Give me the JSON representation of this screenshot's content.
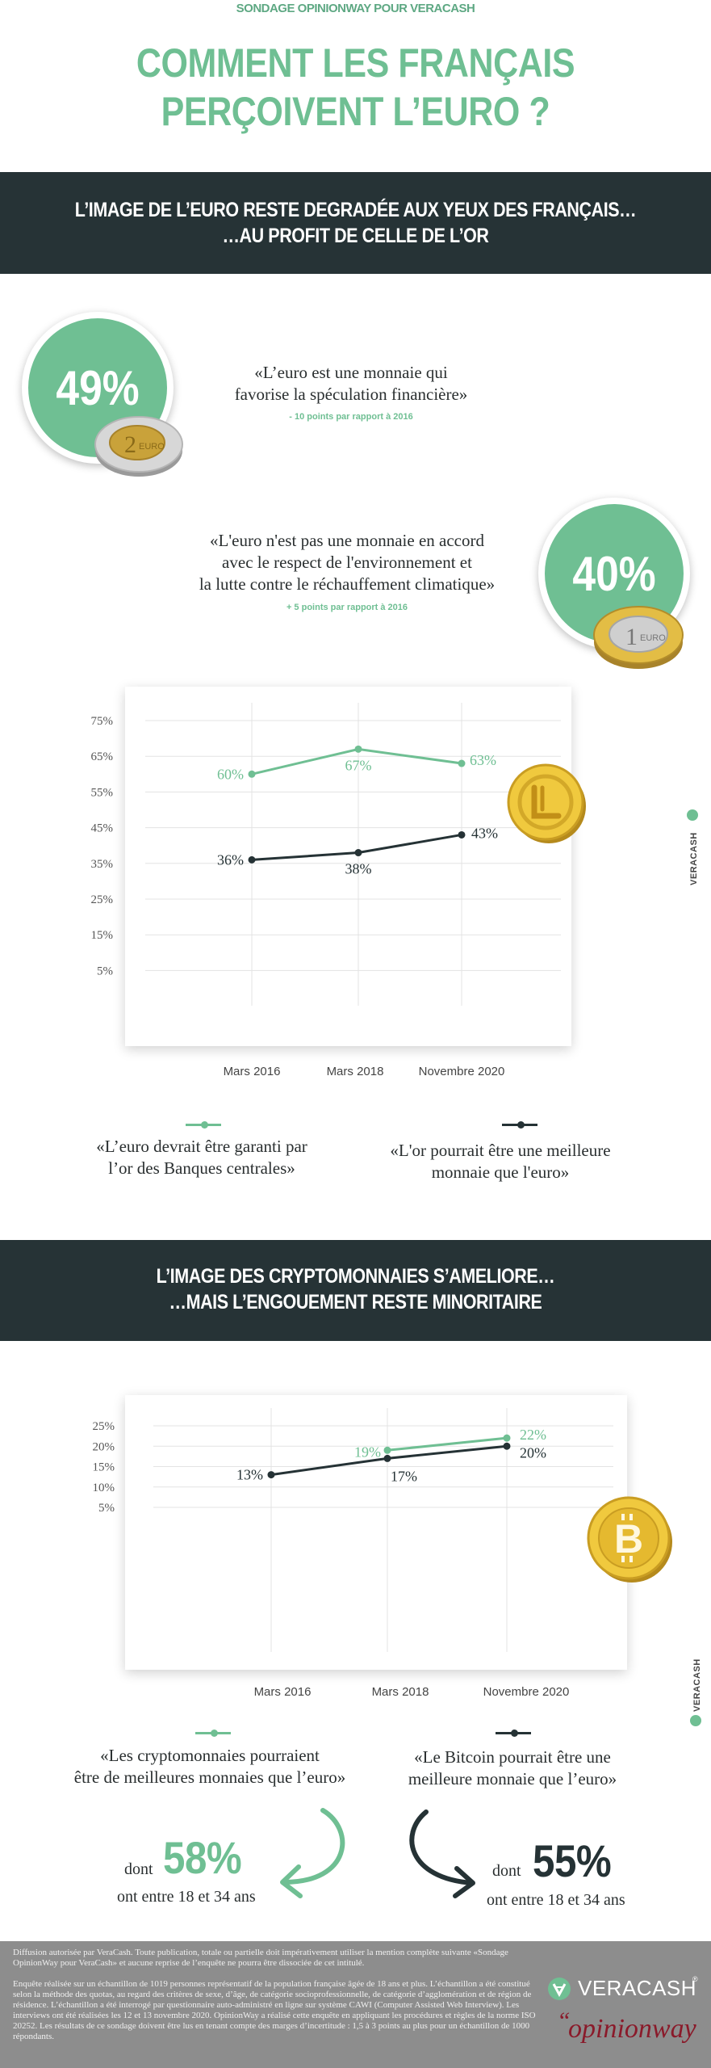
{
  "header": {
    "kicker": "SONDAGE OPINIONWAY POUR VERACASH",
    "title_line1": "COMMENT LES FRANÇAIS",
    "title_line2": "PERÇOIVENT L’EURO ?"
  },
  "section1": {
    "band_line1": "L’IMAGE DE L’EURO RESTE DEGRADÉE AUX YEUX DES FRANÇAIS…",
    "band_line2": "…AU PROFIT DE CELLE DE L’OR",
    "stat1": {
      "value": "49%",
      "quote_line1": "«L’euro est une monnaie qui",
      "quote_line2": "favorise la spéculation financière»",
      "delta": "- 10 points par rapport à 2016"
    },
    "stat2": {
      "value": "40%",
      "quote_line1": "«L'euro n'est pas une monnaie en accord",
      "quote_line2": "avec le respect de l'environnement et",
      "quote_line3": "la lutte contre le réchauffement climatique»",
      "delta": "+ 5 points par rapport à 2016"
    },
    "legend": {
      "green_line1": "«L’euro devrait être garanti par",
      "green_line2": "l’or des Banques centrales»",
      "dark_line1": "«L'or pourrait être une meilleure",
      "dark_line2": "monnaie que l'euro»"
    },
    "watermark": "VERACASH"
  },
  "section2": {
    "band_line1": "L’IMAGE DES CRYPTOMONNAIES S’AMELIORE…",
    "band_line2": "…MAIS L’ENGOUEMENT RESTE MINORITAIRE",
    "legend": {
      "green_line1": "«Les cryptomonnaies pourraient",
      "green_line2": "être de meilleures monnaies que l’euro»",
      "dark_line1": "«Le Bitcoin pourrait être une",
      "dark_line2": "meilleure monnaie que l’euro»"
    },
    "young1": {
      "prefix": "dont",
      "value": "58%",
      "suffix": "ont entre 18 et 34 ans"
    },
    "young2": {
      "prefix": "dont",
      "value": "55%",
      "suffix": "ont entre 18 et 34 ans"
    },
    "watermark": "VERACASH"
  },
  "footer": {
    "p1": "Diffusion autorisée par VeraCash. Toute publication, totale ou partielle doit impérativement utiliser la mention complète suivante «Sondage OpinionWay pour VeraCash» et aucune reprise de l’enquête ne pourra être dissociée de cet intitulé.",
    "p2": "Enquête réalisée sur un échantillon de 1019 personnes représentatif de la population française âgée de 18 ans et plus. L’échantillon a été constitué selon la méthode des quotas, au regard des critères de sexe, d’âge, de catégorie socioprofessionnelle, de catégorie d’agglomération et de région de résidence. L’échantillon a été interrogé par questionnaire auto-administré en ligne sur système CAWI (Computer Assisted Web Interview). Les interviews ont été réalisées les 12 et 13 novembre 2020. OpinionWay a réalisé cette enquête en appliquant les procédures et règles de la norme ISO 20252. Les résultats de ce sondage doivent être lus en tenant compte des marges d’incertitude : 1,5 à 3 points au plus pour un échantillon de 1000 répondants.",
    "logo1": "VERACASH",
    "logo1_mark": "®",
    "logo2": "opinionway",
    "logo2_quote": "“"
  },
  "colors": {
    "green": "#6fbf93",
    "dark": "#253235",
    "band": "#263336",
    "gold": "#e0b32a"
  },
  "icons": [
    "two-euro-coin-icon",
    "one-euro-coin-icon",
    "gold-coin-icon",
    "bitcoin-coin-icon",
    "curved-arrow-icon",
    "veracash-logo-icon"
  ],
  "chart_data": [
    {
      "type": "line",
      "categories": [
        "Mars 2016",
        "Mars 2018",
        "Novembre 2020"
      ],
      "yticks": [
        "75%",
        "65%",
        "55%",
        "45%",
        "35%",
        "25%",
        "15%",
        "5%"
      ],
      "series": [
        {
          "name": "«L’euro devrait être garanti par l’or des Banques centrales»",
          "color": "#6fbf93",
          "values": [
            60,
            67,
            63
          ],
          "labels": [
            "60%",
            "67%",
            "63%"
          ]
        },
        {
          "name": "«L'or pourrait être une meilleure monnaie que l'euro»",
          "color": "#253235",
          "values": [
            36,
            38,
            43
          ],
          "labels": [
            "36%",
            "38%",
            "43%"
          ]
        }
      ]
    },
    {
      "type": "line",
      "categories": [
        "Mars 2016",
        "Mars 2018",
        "Novembre 2020"
      ],
      "yticks": [
        "25%",
        "20%",
        "15%",
        "10%",
        "5%"
      ],
      "series": [
        {
          "name": "«Les cryptomonnaies pourraient être de meilleures monnaies que l’euro»",
          "color": "#6fbf93",
          "values": [
            null,
            19,
            22
          ],
          "labels": [
            "",
            "19%",
            "22%"
          ]
        },
        {
          "name": "«Le Bitcoin pourrait être une meilleure monnaie que l’euro»",
          "color": "#253235",
          "values": [
            13,
            17,
            20
          ],
          "labels": [
            "13%",
            "17%",
            "20%"
          ]
        }
      ]
    }
  ]
}
